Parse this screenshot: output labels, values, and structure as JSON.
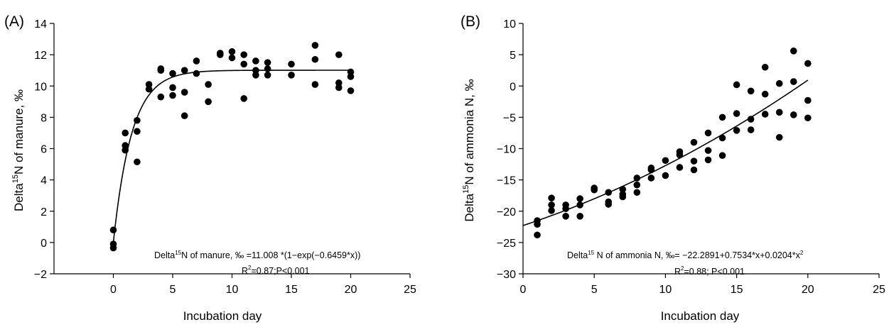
{
  "chart_data": [
    {
      "type": "scatter",
      "panel_label": "(A)",
      "xlabel": "Incubation day",
      "ylabel_pre": "Delta",
      "ylabel_sup": "15",
      "ylabel_post": "N of manure, ‰",
      "xlim": [
        -5,
        25
      ],
      "ylim": [
        -2,
        14
      ],
      "xticks": [
        0,
        5,
        10,
        15,
        20,
        25
      ],
      "yticks": [
        -2,
        0,
        2,
        4,
        6,
        8,
        10,
        12,
        14
      ],
      "x_tick_labels": [
        "0",
        "5",
        "10",
        "15",
        "20",
        "25"
      ],
      "y_tick_labels": [
        "−2",
        "0",
        "2",
        "4",
        "6",
        "8",
        "10",
        "12",
        "14"
      ],
      "grid": false,
      "points": [
        [
          0,
          0.8
        ],
        [
          0,
          -0.1
        ],
        [
          0,
          -0.35
        ],
        [
          1,
          7.0
        ],
        [
          1,
          6.2
        ],
        [
          1,
          5.9
        ],
        [
          2,
          7.8
        ],
        [
          2,
          7.1
        ],
        [
          2,
          5.15
        ],
        [
          3,
          10.1
        ],
        [
          3,
          9.8
        ],
        [
          4,
          11.1
        ],
        [
          4,
          11.0
        ],
        [
          4,
          9.3
        ],
        [
          5,
          10.8
        ],
        [
          5,
          9.9
        ],
        [
          5,
          9.4
        ],
        [
          6,
          11.0
        ],
        [
          6,
          9.6
        ],
        [
          6,
          8.1
        ],
        [
          7,
          11.6
        ],
        [
          7,
          10.8
        ],
        [
          8,
          10.1
        ],
        [
          8,
          9.0
        ],
        [
          9,
          12.1
        ],
        [
          9,
          12.0
        ],
        [
          10,
          12.2
        ],
        [
          10,
          11.8
        ],
        [
          11,
          12.0
        ],
        [
          11,
          11.4
        ],
        [
          11,
          9.2
        ],
        [
          12,
          11.6
        ],
        [
          12,
          11.0
        ],
        [
          12,
          10.7
        ],
        [
          13,
          11.5
        ],
        [
          13,
          11.1
        ],
        [
          13,
          10.7
        ],
        [
          15,
          11.4
        ],
        [
          15,
          10.7
        ],
        [
          17,
          12.6
        ],
        [
          17,
          11.7
        ],
        [
          17,
          10.1
        ],
        [
          19,
          12.0
        ],
        [
          19,
          10.2
        ],
        [
          19,
          9.9
        ],
        [
          20,
          10.9
        ],
        [
          20,
          10.6
        ],
        [
          20,
          9.7
        ]
      ],
      "fit": {
        "kind": "exp_rise",
        "a": 11.008,
        "b": 0.6459,
        "x_range": [
          0,
          20
        ]
      },
      "equation_pre": "Delta",
      "equation_sup": "15",
      "equation_post": "N of manure, ‰ =11.008 *(1−exp(−0.6459*x))",
      "stats_pre": "R",
      "stats_sup": "2",
      "stats_post": "=0.87;P<0.001"
    },
    {
      "type": "scatter",
      "panel_label": "(B)",
      "xlabel": "Incubation day",
      "ylabel_pre": "Delta",
      "ylabel_sup": "15",
      "ylabel_post": "N of ammonia N, ‰",
      "xlim": [
        0,
        25
      ],
      "ylim": [
        -30,
        10
      ],
      "xticks": [
        0,
        5,
        10,
        15,
        20,
        25
      ],
      "yticks": [
        -30,
        -25,
        -20,
        -15,
        -10,
        -5,
        0,
        5,
        10
      ],
      "x_tick_labels": [
        "0",
        "5",
        "10",
        "15",
        "20",
        "25"
      ],
      "y_tick_labels": [
        "−30",
        "−25",
        "−20",
        "−15",
        "−10",
        "−5",
        "0",
        "5",
        "10"
      ],
      "grid": false,
      "points": [
        [
          1,
          -21.5
        ],
        [
          1,
          -22.1
        ],
        [
          1,
          -23.8
        ],
        [
          2,
          -17.9
        ],
        [
          2,
          -19.0
        ],
        [
          2,
          -19.9
        ],
        [
          3,
          -19.0
        ],
        [
          3,
          -19.6
        ],
        [
          3,
          -20.8
        ],
        [
          4,
          -18.0
        ],
        [
          4,
          -19.0
        ],
        [
          4,
          -20.8
        ],
        [
          5,
          -16.3
        ],
        [
          5,
          -16.6
        ],
        [
          6,
          -17.0
        ],
        [
          6,
          -18.5
        ],
        [
          6,
          -18.9
        ],
        [
          7,
          -16.5
        ],
        [
          7,
          -17.3
        ],
        [
          7,
          -17.7
        ],
        [
          8,
          -14.7
        ],
        [
          8,
          -15.8
        ],
        [
          8,
          -17.0
        ],
        [
          9,
          -13.1
        ],
        [
          9,
          -13.4
        ],
        [
          9,
          -14.7
        ],
        [
          10,
          -11.9
        ],
        [
          10,
          -14.3
        ],
        [
          11,
          -10.5
        ],
        [
          11,
          -11.0
        ],
        [
          11,
          -13.0
        ],
        [
          12,
          -9.0
        ],
        [
          12,
          -12.0
        ],
        [
          12,
          -13.4
        ],
        [
          13,
          -7.5
        ],
        [
          13,
          -10.3
        ],
        [
          13,
          -11.8
        ],
        [
          14,
          -5.0
        ],
        [
          14,
          -8.3
        ],
        [
          14,
          -11.1
        ],
        [
          15,
          0.2
        ],
        [
          15,
          -4.4
        ],
        [
          15,
          -7.1
        ],
        [
          16,
          -0.8
        ],
        [
          16,
          -5.3
        ],
        [
          16,
          -7.0
        ],
        [
          17,
          3.0
        ],
        [
          17,
          -1.3
        ],
        [
          17,
          -4.5
        ],
        [
          18,
          0.4
        ],
        [
          18,
          -4.2
        ],
        [
          18,
          -8.2
        ],
        [
          19,
          5.6
        ],
        [
          19,
          0.7
        ],
        [
          19,
          -4.6
        ],
        [
          20,
          3.6
        ],
        [
          20,
          -2.3
        ],
        [
          20,
          -5.1
        ]
      ],
      "fit": {
        "kind": "quadratic",
        "c0": -22.2891,
        "c1": 0.7534,
        "c2": 0.0204,
        "x_range": [
          0,
          20
        ]
      },
      "equation_pre": "Delta",
      "equation_sup": "15",
      "equation_post": " N of ammonia N, ‰= −22.2891+0.7534*x+0.0204*x",
      "equation_tail_sup": "2",
      "stats_pre": "R",
      "stats_sup": "2",
      "stats_post": "=0.88; P<0.001"
    }
  ]
}
